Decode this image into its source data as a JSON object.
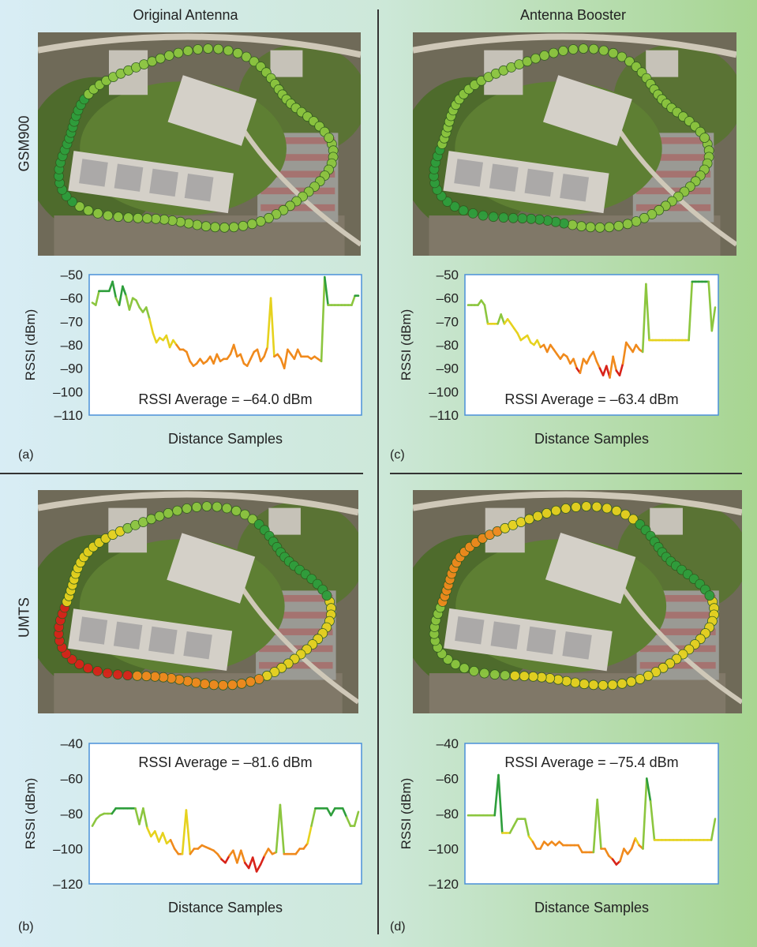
{
  "headers": {
    "col_left": "Original Antenna",
    "col_right": "Antenna Booster",
    "row_top": "GSM900",
    "row_bottom": "UMTS"
  },
  "colors": {
    "strong": "#2e9e3c",
    "good": "#8cc63f",
    "medium": "#e6d21e",
    "weak": "#f08a1c",
    "poor": "#d8231a",
    "plot_border": "#4a90d9"
  },
  "panels": [
    {
      "id": "a",
      "letter": "(a)",
      "band": "GSM900",
      "antenna": "Original Antenna",
      "map_icon": "aerial-coverage-map"
    },
    {
      "id": "c",
      "letter": "(c)",
      "band": "GSM900",
      "antenna": "Antenna Booster",
      "map_icon": "aerial-coverage-map"
    },
    {
      "id": "b",
      "letter": "(b)",
      "band": "UMTS",
      "antenna": "Original Antenna",
      "map_icon": "aerial-coverage-map"
    },
    {
      "id": "d",
      "letter": "(d)",
      "band": "UMTS",
      "antenna": "Antenna Booster",
      "map_icon": "aerial-coverage-map"
    }
  ],
  "chart_data": [
    {
      "type": "line",
      "panel": "a",
      "title": "",
      "xlabel": "Distance Samples",
      "ylabel": "RSSI (dBm)",
      "ylim": [
        -110,
        -50
      ],
      "yticks": [
        -50,
        -60,
        -70,
        -80,
        -90,
        -100,
        -110
      ],
      "tick_labels": [
        "–50",
        "–60",
        "–70",
        "–80",
        "–90",
        "–100",
        "–110"
      ],
      "annotation": "RSSI Average = –64.0 dBm",
      "series": [
        {
          "values": [
            -62,
            -63,
            -57,
            -57,
            -57,
            -57,
            -53,
            -60,
            -63,
            -55,
            -59,
            -65,
            -60,
            -61,
            -64,
            -66,
            -64,
            -69,
            -75,
            -79,
            -77,
            -78,
            -76,
            -81,
            -78,
            -80,
            -82,
            -82,
            -83,
            -87,
            -89,
            -88,
            -86,
            -88,
            -87,
            -85,
            -88,
            -84,
            -87,
            -86,
            -86,
            -84,
            -80,
            -85,
            -84,
            -88,
            -89,
            -86,
            -83,
            -82,
            -87,
            -85,
            -81,
            -60,
            -85,
            -84,
            -86,
            -90,
            -82,
            -84,
            -86,
            -82,
            -85,
            -85,
            -85,
            -86,
            -85,
            -86,
            -87,
            -51,
            -63,
            -63,
            -63,
            -63,
            -63,
            -63,
            -63,
            -63,
            -59,
            -59
          ]
        }
      ]
    },
    {
      "type": "line",
      "panel": "c",
      "title": "",
      "xlabel": "Distance Samples",
      "ylabel": "RSSI (dBm)",
      "ylim": [
        -110,
        -50
      ],
      "yticks": [
        -50,
        -60,
        -70,
        -80,
        -90,
        -100,
        -110
      ],
      "tick_labels": [
        "–50",
        "–60",
        "–70",
        "–80",
        "–90",
        "–100",
        "–110"
      ],
      "annotation": "RSSI Average = –63.4 dBm",
      "series": [
        {
          "values": [
            -63,
            -63,
            -63,
            -63,
            -61,
            -63,
            -71,
            -71,
            -71,
            -71,
            -67,
            -71,
            -69,
            -71,
            -73,
            -75,
            -78,
            -77,
            -76,
            -79,
            -80,
            -78,
            -81,
            -80,
            -83,
            -80,
            -82,
            -84,
            -86,
            -84,
            -85,
            -88,
            -86,
            -90,
            -92,
            -86,
            -88,
            -85,
            -83,
            -87,
            -90,
            -93,
            -89,
            -94,
            -85,
            -91,
            -93,
            -88,
            -79,
            -81,
            -83,
            -80,
            -82,
            -83,
            -54,
            -78,
            -78,
            -78,
            -78,
            -78,
            -78,
            -78,
            -78,
            -78,
            -78,
            -78,
            -78,
            -78,
            -53,
            -53,
            -53,
            -53,
            -53,
            -53,
            -74,
            -64
          ]
        }
      ]
    },
    {
      "type": "line",
      "panel": "b",
      "title": "",
      "xlabel": "Distance Samples",
      "ylabel": "RSSI (dBm)",
      "ylim": [
        -120,
        -40
      ],
      "yticks": [
        -40,
        -60,
        -80,
        -100,
        -120
      ],
      "tick_labels": [
        "–40",
        "–60",
        "–80",
        "–100",
        "–120"
      ],
      "annotation": "RSSI Average = –81.6 dBm",
      "series": [
        {
          "values": [
            -87,
            -83,
            -81,
            -80,
            -80,
            -80,
            -77,
            -77,
            -77,
            -77,
            -77,
            -77,
            -86,
            -77,
            -88,
            -93,
            -90,
            -96,
            -91,
            -97,
            -95,
            -100,
            -103,
            -103,
            -78,
            -103,
            -100,
            -100,
            -98,
            -99,
            -100,
            -101,
            -103,
            -106,
            -108,
            -104,
            -101,
            -108,
            -101,
            -108,
            -111,
            -105,
            -113,
            -109,
            -104,
            -100,
            -103,
            -102,
            -75,
            -103,
            -103,
            -103,
            -103,
            -100,
            -100,
            -97,
            -87,
            -77,
            -77,
            -77,
            -77,
            -81,
            -77,
            -77,
            -77,
            -82,
            -87,
            -87,
            -79
          ]
        }
      ]
    },
    {
      "type": "line",
      "panel": "d",
      "title": "",
      "xlabel": "Distance Samples",
      "ylabel": "RSSI (dBm)",
      "ylim": [
        -120,
        -40
      ],
      "yticks": [
        -40,
        -60,
        -80,
        -100,
        -120
      ],
      "tick_labels": [
        "–40",
        "–60",
        "–80",
        "–100",
        "–120"
      ],
      "annotation": "RSSI Average = –75.4 dBm",
      "series": [
        {
          "values": [
            -81,
            -81,
            -81,
            -81,
            -81,
            -81,
            -81,
            -81,
            -58,
            -91,
            -91,
            -91,
            -87,
            -83,
            -83,
            -83,
            -93,
            -96,
            -100,
            -100,
            -96,
            -98,
            -96,
            -98,
            -96,
            -98,
            -98,
            -98,
            -98,
            -98,
            -102,
            -102,
            -102,
            -102,
            -72,
            -100,
            -100,
            -104,
            -106,
            -109,
            -107,
            -100,
            -103,
            -100,
            -94,
            -98,
            -100,
            -60,
            -73,
            -95,
            -95,
            -95,
            -95,
            -95,
            -95,
            -95,
            -95,
            -95,
            -95,
            -95,
            -95,
            -95,
            -95,
            -95,
            -95,
            -83
          ]
        }
      ]
    }
  ]
}
